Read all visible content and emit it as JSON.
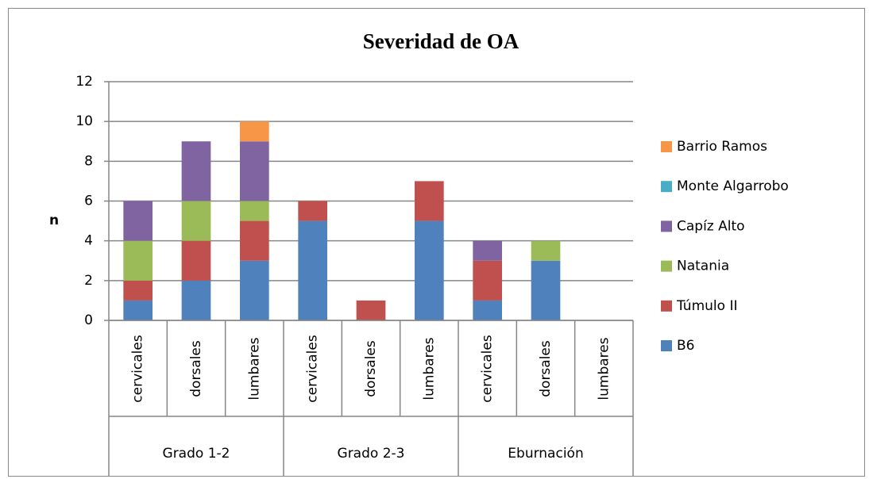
{
  "chart_data": {
    "type": "stacked_bar",
    "title": "Severidad de OA",
    "y_label": "n",
    "categories": [
      "cervicales",
      "dorsales",
      "lumbares",
      "cervicales",
      "dorsales",
      "lumbares",
      "cervicales",
      "dorsales",
      "lumbares"
    ],
    "category_groups": [
      "Grado 1-2",
      "Grado 2-3",
      "Eburnación"
    ],
    "series": [
      {
        "name": "B6",
        "color": "#4f81bd",
        "values": [
          1,
          2,
          3,
          5,
          0,
          5,
          1,
          3,
          0
        ]
      },
      {
        "name": "Túmulo II",
        "color": "#c0504d",
        "values": [
          1,
          2,
          2,
          1,
          1,
          2,
          2,
          0,
          0
        ]
      },
      {
        "name": "Natania",
        "color": "#9bbb59",
        "values": [
          2,
          2,
          1,
          0,
          0,
          0,
          0,
          1,
          0
        ]
      },
      {
        "name": "Capíz Alto",
        "color": "#8064a2",
        "values": [
          2,
          3,
          3,
          0,
          0,
          0,
          1,
          0,
          0
        ]
      },
      {
        "name": "Monte Algarrobo",
        "color": "#4bacc6",
        "values": [
          0,
          0,
          0,
          0,
          0,
          0,
          0,
          0,
          0
        ]
      },
      {
        "name": "Barrio Ramos",
        "color": "#f79646",
        "values": [
          0,
          0,
          1,
          0,
          0,
          0,
          0,
          0,
          0
        ]
      }
    ],
    "ylim": [
      0,
      12
    ],
    "yticks": [
      0,
      2,
      4,
      6,
      8,
      10,
      12
    ],
    "grid": true,
    "legend": "right"
  }
}
